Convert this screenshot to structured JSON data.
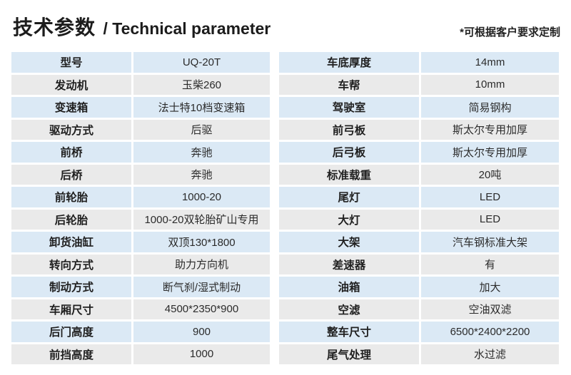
{
  "page": {
    "title_zh": "技术参数",
    "title_en": "/ Technical parameter",
    "note": "*可根据客户要求定制"
  },
  "colors": {
    "row_blue": "#dbe9f5",
    "row_gray": "#eaeaea",
    "text_dark": "#1f1f1f",
    "background": "#ffffff"
  },
  "tables": {
    "left": {
      "rows": [
        {
          "label": "型号",
          "value": "UQ-20T"
        },
        {
          "label": "发动机",
          "value": "玉柴260"
        },
        {
          "label": "变速箱",
          "value": "法士特10档变速箱"
        },
        {
          "label": "驱动方式",
          "value": "后驱"
        },
        {
          "label": "前桥",
          "value": "奔驰"
        },
        {
          "label": "后桥",
          "value": "奔驰"
        },
        {
          "label": "前轮胎",
          "value": "1000-20"
        },
        {
          "label": "后轮胎",
          "value": "1000-20双轮胎矿山专用"
        },
        {
          "label": "卸货油缸",
          "value": "双顶130*1800"
        },
        {
          "label": "转向方式",
          "value": "助力方向机"
        },
        {
          "label": "制动方式",
          "value": "断气刹/湿式制动"
        },
        {
          "label": "车厢尺寸",
          "value": "4500*2350*900"
        },
        {
          "label": "后门高度",
          "value": "900"
        },
        {
          "label": "前挡高度",
          "value": "1000"
        }
      ]
    },
    "right": {
      "rows": [
        {
          "label": "车底厚度",
          "value": "14mm"
        },
        {
          "label": "车帮",
          "value": "10mm"
        },
        {
          "label": "驾驶室",
          "value": "简易钢构"
        },
        {
          "label": "前弓板",
          "value": "斯太尔专用加厚"
        },
        {
          "label": "后弓板",
          "value": "斯太尔专用加厚"
        },
        {
          "label": "标准载重",
          "value": "20吨"
        },
        {
          "label": "尾灯",
          "value": "LED"
        },
        {
          "label": "大灯",
          "value": "LED"
        },
        {
          "label": "大架",
          "value": "汽车钢标准大架"
        },
        {
          "label": "差速器",
          "value": "有"
        },
        {
          "label": "油箱",
          "value": "加大"
        },
        {
          "label": "空滤",
          "value": "空油双滤"
        },
        {
          "label": "整车尺寸",
          "value": "6500*2400*2200"
        },
        {
          "label": "尾气处理",
          "value": "水过滤"
        }
      ]
    }
  }
}
